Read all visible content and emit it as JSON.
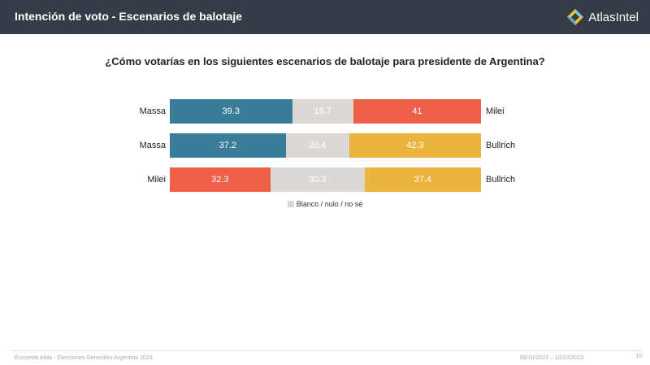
{
  "header": {
    "title": "Intención de voto - Escenarios de balotaje",
    "brand": "AtlasIntel",
    "brand_logo": "atlasintel-logo-icon"
  },
  "chart_data": {
    "type": "bar",
    "stacked": true,
    "orientation": "horizontal",
    "title": "¿Cómo votarías en los siguientes escenarios de balotaje para presidente de Argentina?",
    "rows": [
      {
        "left_label": "Massa",
        "right_label": "Milei",
        "values": [
          39.3,
          19.7,
          41
        ],
        "labels": [
          "39.3",
          "19.7",
          "41"
        ],
        "colors": [
          "#3a7d99",
          "#dcd8d5",
          "#ee5f47"
        ]
      },
      {
        "left_label": "Massa",
        "right_label": "Bullrich",
        "values": [
          37.2,
          20.4,
          42.3
        ],
        "labels": [
          "37.2",
          "20.4",
          "42.3"
        ],
        "colors": [
          "#3a7d99",
          "#dcd8d5",
          "#eab43e"
        ]
      },
      {
        "left_label": "Milei",
        "right_label": "Bullrich",
        "values": [
          32.3,
          30.3,
          37.4
        ],
        "labels": [
          "32.3",
          "30.3",
          "37.4"
        ],
        "colors": [
          "#ee5f47",
          "#dcd8d5",
          "#eab43e"
        ]
      }
    ],
    "legend": {
      "label": "Blanco / nulo / no sé",
      "color": "#dcd8d5",
      "position": "bottom-center"
    }
  },
  "footer": {
    "source": "Encuesta Atlas - Elecciones Generales Argentina 2023",
    "dates": "08/10/2023 – 10/10/2023",
    "page": "10"
  }
}
